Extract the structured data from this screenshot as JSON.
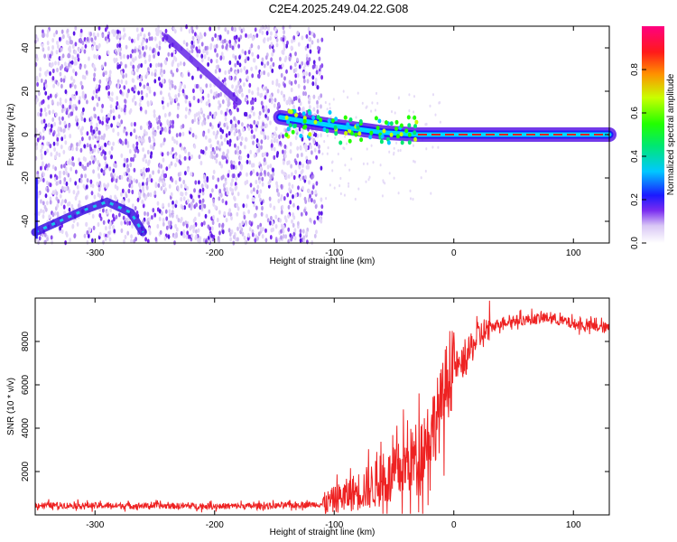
{
  "title": "C2E4.2025.249.04.22.G08",
  "chart_data": [
    {
      "type": "heatmap",
      "xlabel": "Height of straight line (km)",
      "ylabel": "Frequency (Hz)",
      "xlim": [
        -350,
        130
      ],
      "ylim": [
        -50,
        50
      ],
      "xticks": [
        -300,
        -200,
        -100,
        0,
        100
      ],
      "yticks": [
        -40,
        -20,
        0,
        20,
        40
      ],
      "colorbar": {
        "label": "Normalized spectral amplitude",
        "range": [
          0,
          1
        ],
        "ticks": [
          "0.0",
          "0.2",
          "0.4",
          "0.6",
          "0.8"
        ]
      },
      "features": [
        {
          "name": "",
          "x": [
            -350,
            -330,
            -310,
            -290,
            -270,
            -260
          ],
          "y": [
            -45,
            -40,
            -35,
            -31,
            -36,
            -45
          ]
        },
        {
          "name": "",
          "x": [
            -240,
            -220,
            -200,
            -180
          ],
          "y": [
            45,
            35,
            25,
            15
          ]
        },
        {
          "name": "",
          "x": [
            -145,
            -100,
            -60,
            -30,
            0,
            50,
            130
          ],
          "y": [
            8,
            4,
            1,
            0,
            0,
            0,
            0
          ]
        }
      ]
    },
    {
      "type": "line",
      "xlabel": "Height of straight line (km)",
      "ylabel": "SNR (10 * v/v)",
      "xlim": [
        -350,
        130
      ],
      "ylim": [
        0,
        10000
      ],
      "xticks": [
        -300,
        -200,
        -100,
        0,
        100
      ],
      "yticks": [
        2000,
        4000,
        6000,
        8000
      ],
      "series": [
        {
          "name": "",
          "color": "#ee2222",
          "x": [
            -350,
            -300,
            -250,
            -200,
            -150,
            -110,
            -90,
            -70,
            -50,
            -30,
            -20,
            -10,
            -5,
            0,
            5,
            10,
            20,
            30,
            40,
            60,
            80,
            100,
            130
          ],
          "y": [
            450,
            430,
            420,
            400,
            420,
            500,
            900,
            1300,
            1800,
            2800,
            3800,
            5000,
            6400,
            7000,
            6800,
            7200,
            8200,
            8600,
            8900,
            9000,
            9100,
            8800,
            8600
          ]
        }
      ]
    }
  ]
}
